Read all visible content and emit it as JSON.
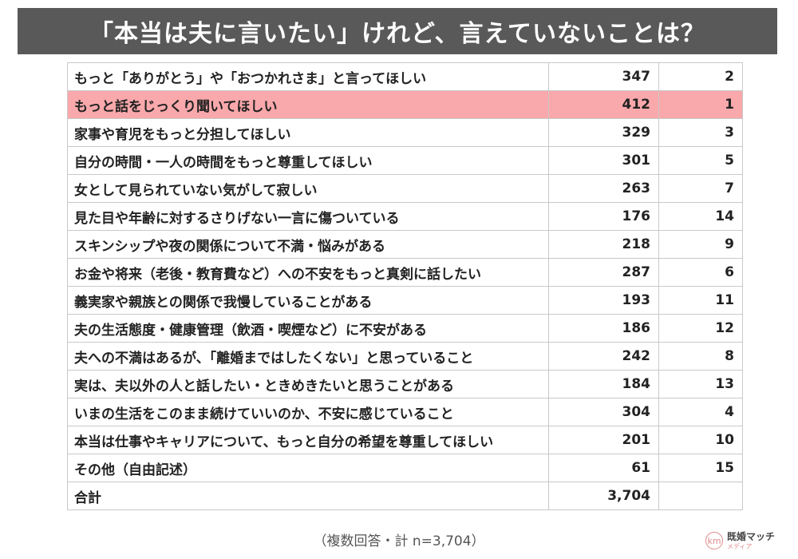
{
  "title": "「本当は夫に言いたい」けれど、言えていないことは？",
  "chart_data": {
    "type": "table",
    "title": "「本当は夫に言いたい」けれど、言えていないことは？",
    "highlight_color": "#f9a8ab",
    "header_color": "#595959",
    "rows": [
      {
        "label": "もっと「ありがとう」や「おつかれさま」と言ってほしい",
        "count": 347,
        "count_text": "347",
        "rank": "2",
        "highlight": false
      },
      {
        "label": "もっと話をじっくり聞いてほしい",
        "count": 412,
        "count_text": "412",
        "rank": "1",
        "highlight": true
      },
      {
        "label": "家事や育児をもっと分担してほしい",
        "count": 329,
        "count_text": "329",
        "rank": "3",
        "highlight": false
      },
      {
        "label": "自分の時間・一人の時間をもっと尊重してほしい",
        "count": 301,
        "count_text": "301",
        "rank": "5",
        "highlight": false
      },
      {
        "label": "女として見られていない気がして寂しい",
        "count": 263,
        "count_text": "263",
        "rank": "7",
        "highlight": false
      },
      {
        "label": "見た目や年齢に対するさりげない一言に傷ついている",
        "count": 176,
        "count_text": "176",
        "rank": "14",
        "highlight": false
      },
      {
        "label": "スキンシップや夜の関係について不満・悩みがある",
        "count": 218,
        "count_text": "218",
        "rank": "9",
        "highlight": false
      },
      {
        "label": "お金や将来（老後・教育費など）への不安をもっと真剣に話したい",
        "count": 287,
        "count_text": "287",
        "rank": "6",
        "highlight": false
      },
      {
        "label": "義実家や親族との関係で我慢していることがある",
        "count": 193,
        "count_text": "193",
        "rank": "11",
        "highlight": false
      },
      {
        "label": "夫の生活態度・健康管理（飲酒・喫煙など）に不安がある",
        "count": 186,
        "count_text": "186",
        "rank": "12",
        "highlight": false
      },
      {
        "label": "夫への不満はあるが、「離婚まではしたくない」と思っていること",
        "count": 242,
        "count_text": "242",
        "rank": "8",
        "highlight": false
      },
      {
        "label": "実は、夫以外の人と話したい・ときめきたいと思うことがある",
        "count": 184,
        "count_text": "184",
        "rank": "13",
        "highlight": false
      },
      {
        "label": "いまの生活をこのまま続けていいのか、不安に感じていること",
        "count": 304,
        "count_text": "304",
        "rank": "4",
        "highlight": false
      },
      {
        "label": "本当は仕事やキャリアについて、もっと自分の希望を尊重してほしい",
        "count": 201,
        "count_text": "201",
        "rank": "10",
        "highlight": false
      },
      {
        "label": "その他（自由記述）",
        "count": 61,
        "count_text": "61",
        "rank": "15",
        "highlight": false
      }
    ],
    "total": {
      "label": "合計",
      "count": 3704,
      "count_text": "3,704",
      "rank": ""
    }
  },
  "footnote": "（複数回答・計 n=3,704）",
  "logo": {
    "mark": "km",
    "name": "既婚マッチ",
    "sub": "メディア"
  }
}
